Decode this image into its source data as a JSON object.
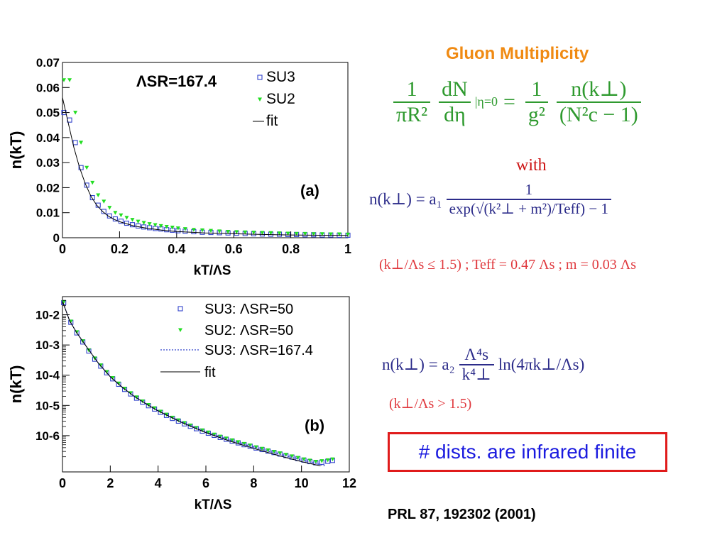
{
  "heading": "Gluon Multiplicity",
  "eq_main": {
    "lhs_num": "1",
    "lhs_den": "πR²",
    "dn_num": "dN",
    "dn_den": "dη",
    "eval": "|η=0",
    "eq": "=",
    "rhs1_num": "1",
    "rhs1_den": "g²",
    "rhs2_num": "n(k⊥)",
    "rhs2_den": "(N²c − 1)"
  },
  "with_text": "with",
  "eq_low": {
    "lhs": "n(k⊥) = a₁",
    "num": "1",
    "den": "exp(√(k²⊥ + m²)/Teff) − 1",
    "cond": "(k⊥/Λs ≤ 1.5) ; Teff = 0.47 Λs ; m = 0.03 Λs"
  },
  "eq_high": {
    "lhs": "n(k⊥) = a₂",
    "num": "Λ⁴s",
    "den": "k⁴⊥",
    "rhs": "ln(4πk⊥/Λs)",
    "cond": "(k⊥/Λs > 1.5)"
  },
  "note": "# dists. are infrared finite",
  "reference": "PRL 87, 192302 (2001)",
  "colors": {
    "su3": "#3344cc",
    "su2": "#22dd22",
    "fit": "#000000",
    "orange": "#f08a12"
  },
  "chart_data": [
    {
      "type": "scatter",
      "panel_label": "(a)",
      "annotation": "ΛSR=167.4",
      "xlabel": "kT/ΛS",
      "ylabel": "n(kT)",
      "xlim": [
        0,
        1
      ],
      "ylim": [
        0,
        0.07
      ],
      "x_ticks": [
        "0",
        "0.2",
        "0.4",
        "0.6",
        "0.8",
        "1"
      ],
      "y_ticks": [
        "0",
        "0.01",
        "0.02",
        "0.03",
        "0.04",
        "0.05",
        "0.06",
        "0.07"
      ],
      "legend": [
        "SU3",
        "SU2",
        "fit"
      ],
      "series": [
        {
          "name": "SU3",
          "marker": "square",
          "x": [
            0.005,
            0.025,
            0.045,
            0.065,
            0.085,
            0.105,
            0.125,
            0.145,
            0.165,
            0.185,
            0.205,
            0.225,
            0.245,
            0.265,
            0.285,
            0.305,
            0.325,
            0.345,
            0.365,
            0.385,
            0.405,
            0.43,
            0.46,
            0.49,
            0.52,
            0.55,
            0.58,
            0.61,
            0.64,
            0.67,
            0.7,
            0.73,
            0.76,
            0.79,
            0.82,
            0.85,
            0.88,
            0.91,
            0.94,
            0.97,
            1.0
          ],
          "y": [
            0.05,
            0.047,
            0.038,
            0.028,
            0.021,
            0.016,
            0.013,
            0.0105,
            0.0087,
            0.0075,
            0.0066,
            0.0058,
            0.0052,
            0.0047,
            0.0043,
            0.004,
            0.0037,
            0.0035,
            0.0032,
            0.003,
            0.0028,
            0.0026,
            0.0024,
            0.0022,
            0.0021,
            0.002,
            0.0019,
            0.0018,
            0.0017,
            0.0016,
            0.0015,
            0.0014,
            0.0014,
            0.0013,
            0.0013,
            0.0012,
            0.0012,
            0.0011,
            0.0011,
            0.001,
            0.001
          ]
        },
        {
          "name": "SU2",
          "marker": "triangle",
          "x": [
            0.005,
            0.025,
            0.045,
            0.065,
            0.085,
            0.105,
            0.125,
            0.145,
            0.165,
            0.185,
            0.205,
            0.225,
            0.245,
            0.265,
            0.285,
            0.305,
            0.325,
            0.345,
            0.365,
            0.385,
            0.405,
            0.43,
            0.46,
            0.49,
            0.52,
            0.55,
            0.58,
            0.61,
            0.64,
            0.67,
            0.7,
            0.73,
            0.76,
            0.79,
            0.82,
            0.85,
            0.88,
            0.91,
            0.94,
            0.97,
            1.0
          ],
          "y": [
            0.063,
            0.063,
            0.05,
            0.038,
            0.028,
            0.022,
            0.017,
            0.0145,
            0.012,
            0.01,
            0.009,
            0.008,
            0.0072,
            0.0065,
            0.006,
            0.0055,
            0.0051,
            0.0047,
            0.0044,
            0.0041,
            0.0038,
            0.0035,
            0.0032,
            0.003,
            0.0028,
            0.0026,
            0.0024,
            0.0023,
            0.0022,
            0.0021,
            0.002,
            0.0019,
            0.0018,
            0.0017,
            0.0016,
            0.0016,
            0.0015,
            0.0015,
            0.0014,
            0.0014,
            0.0013
          ]
        },
        {
          "name": "fit",
          "marker": "line",
          "x": [
            0.0,
            0.02,
            0.04,
            0.06,
            0.08,
            0.1,
            0.12,
            0.14,
            0.16,
            0.18,
            0.2,
            0.25,
            0.3,
            0.35,
            0.4,
            0.5,
            0.6,
            0.7,
            0.8,
            0.9,
            1.0
          ],
          "y": [
            0.056,
            0.046,
            0.036,
            0.028,
            0.0215,
            0.0165,
            0.013,
            0.0105,
            0.0087,
            0.0074,
            0.0064,
            0.0047,
            0.0037,
            0.003,
            0.0025,
            0.0019,
            0.0016,
            0.0013,
            0.0011,
            0.001,
            0.0009
          ]
        }
      ]
    },
    {
      "type": "scatter",
      "panel_label": "(b)",
      "xlabel": "kT/ΛS",
      "ylabel": "n(kT)",
      "xlim": [
        0,
        12
      ],
      "ylim_log10": [
        -7.2,
        -1.4
      ],
      "x_ticks": [
        "0",
        "2",
        "4",
        "6",
        "8",
        "10",
        "12"
      ],
      "y_ticks": [
        "10-2",
        "10-3",
        "10-4",
        "10-5",
        "10-6"
      ],
      "log_y": true,
      "legend": [
        "SU3: ΛSR=50",
        "SU2: ΛSR=50",
        "SU3: ΛSR=167.4",
        "fit"
      ],
      "series": [
        {
          "name": "SU3: ΛSR=50",
          "marker": "square",
          "x": [
            0.05,
            0.35,
            0.6,
            0.85,
            1.1,
            1.35,
            1.6,
            1.85,
            2.1,
            2.35,
            2.6,
            2.85,
            3.1,
            3.35,
            3.6,
            3.85,
            4.1,
            4.35,
            4.6,
            4.85,
            5.1,
            5.35,
            5.6,
            5.85,
            6.1,
            6.35,
            6.6,
            6.85,
            7.1,
            7.35,
            7.6,
            7.85,
            8.1,
            8.35,
            8.6,
            8.85,
            9.1,
            9.35,
            9.6,
            9.85,
            10.1,
            10.35,
            10.6,
            10.85,
            11.1,
            11.3
          ],
          "y": [
            -1.6,
            -2.25,
            -2.6,
            -2.9,
            -3.2,
            -3.47,
            -3.7,
            -3.92,
            -4.12,
            -4.3,
            -4.47,
            -4.62,
            -4.76,
            -4.89,
            -5.01,
            -5.12,
            -5.23,
            -5.33,
            -5.43,
            -5.52,
            -5.61,
            -5.69,
            -5.77,
            -5.85,
            -5.92,
            -5.99,
            -6.06,
            -6.12,
            -6.18,
            -6.24,
            -6.3,
            -6.35,
            -6.41,
            -6.46,
            -6.51,
            -6.56,
            -6.61,
            -6.66,
            -6.71,
            -6.76,
            -6.81,
            -6.86,
            -6.9,
            -6.88,
            -6.85,
            -6.82
          ]
        },
        {
          "name": "SU2: ΛSR=50",
          "marker": "triangle",
          "x": [
            0.05,
            0.35,
            0.6,
            0.85,
            1.1,
            1.35,
            1.6,
            1.85,
            2.1,
            2.35,
            2.6,
            2.85,
            3.1,
            3.35,
            3.6,
            3.85,
            4.1,
            4.35,
            4.6,
            4.85,
            5.1,
            5.35,
            5.6,
            5.85,
            6.1,
            6.35,
            6.6,
            6.85,
            7.1,
            7.35,
            7.6,
            7.85,
            8.1,
            8.35,
            8.6,
            8.85,
            9.1,
            9.35,
            9.6,
            9.85,
            10.1,
            10.35,
            10.6,
            10.85,
            11.1,
            11.3
          ],
          "y": [
            -1.58,
            -2.22,
            -2.57,
            -2.87,
            -3.17,
            -3.44,
            -3.67,
            -3.89,
            -4.09,
            -4.27,
            -4.44,
            -4.59,
            -4.73,
            -4.86,
            -4.98,
            -5.09,
            -5.2,
            -5.3,
            -5.4,
            -5.49,
            -5.58,
            -5.66,
            -5.74,
            -5.82,
            -5.89,
            -5.96,
            -6.03,
            -6.09,
            -6.15,
            -6.21,
            -6.27,
            -6.32,
            -6.38,
            -6.43,
            -6.48,
            -6.53,
            -6.58,
            -6.63,
            -6.68,
            -6.73,
            -6.78,
            -6.82,
            -6.86,
            -6.84,
            -6.81,
            -6.78
          ]
        },
        {
          "name": "SU3: ΛSR=167.4",
          "marker": "dotted",
          "x": [
            0.0,
            0.3,
            0.6,
            1.0,
            1.5,
            2.0,
            2.5,
            3.0,
            3.5,
            4.0,
            5.0,
            6.0,
            7.0,
            8.0,
            9.0,
            10.0,
            11.0
          ],
          "y": [
            -1.55,
            -2.2,
            -2.6,
            -3.05,
            -3.6,
            -4.05,
            -4.4,
            -4.7,
            -4.95,
            -5.18,
            -5.55,
            -5.88,
            -6.15,
            -6.38,
            -6.6,
            -6.8,
            -7.0
          ]
        },
        {
          "name": "fit",
          "marker": "line",
          "x": [
            0.0,
            0.3,
            0.6,
            1.0,
            1.5,
            2.0,
            2.5,
            3.0,
            3.5,
            4.0,
            5.0,
            6.0,
            7.0,
            8.0,
            9.0,
            10.0,
            10.8
          ],
          "y": [
            -1.55,
            -2.2,
            -2.6,
            -3.05,
            -3.6,
            -4.05,
            -4.4,
            -4.7,
            -4.95,
            -5.18,
            -5.57,
            -5.9,
            -6.18,
            -6.42,
            -6.65,
            -6.86,
            -7.0
          ]
        }
      ]
    }
  ]
}
